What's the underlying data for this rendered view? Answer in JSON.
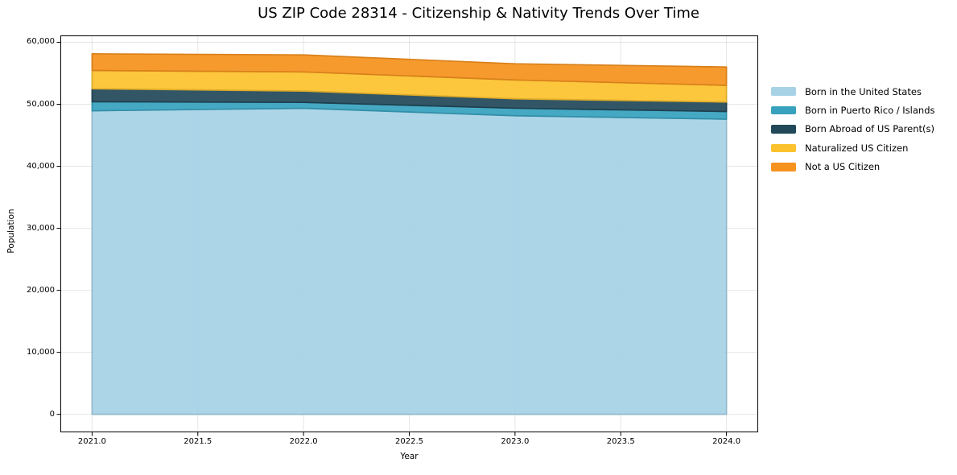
{
  "title": "US ZIP Code 28314 - Citizenship & Nativity Trends Over Time",
  "chart_data": {
    "type": "area",
    "stacked": true,
    "title": "US ZIP Code 28314 - Citizenship & Nativity Trends Over Time",
    "xlabel": "Year",
    "ylabel": "Population",
    "x": [
      2021,
      2022,
      2023,
      2024
    ],
    "series": [
      {
        "name": "Born in the United States",
        "color": "#a7d2e6",
        "values": [
          48950,
          49350,
          48150,
          47600
        ]
      },
      {
        "name": "Born in Puerto Rico / Islands",
        "color": "#38a2be",
        "values": [
          1450,
          960,
          1210,
          1230
        ]
      },
      {
        "name": "Born Abroad of US Parent(s)",
        "color": "#22495a",
        "values": [
          2100,
          1820,
          1520,
          1530
        ]
      },
      {
        "name": "Naturalized US Citizen",
        "color": "#fcc22e",
        "values": [
          2950,
          3090,
          3040,
          2690
        ]
      },
      {
        "name": "Not a US Citizen",
        "color": "#f6921e",
        "values": [
          2680,
          2740,
          2610,
          2960
        ]
      }
    ],
    "totals": [
      58130,
      57960,
      56530,
      56010
    ],
    "xticks": [
      2021.0,
      2021.5,
      2022.0,
      2022.5,
      2023.0,
      2023.5,
      2024.0
    ],
    "xtick_labels": [
      "2021.0",
      "2021.5",
      "2022.0",
      "2022.5",
      "2023.0",
      "2023.5",
      "2024.0"
    ],
    "yticks": [
      0,
      10000,
      20000,
      30000,
      40000,
      50000,
      60000
    ],
    "ytick_labels": [
      "0",
      "10,000",
      "20,000",
      "30,000",
      "40,000",
      "50,000",
      "60,000"
    ],
    "xlim": [
      2020.85,
      2024.15
    ],
    "ylim": [
      -2900,
      61100
    ],
    "grid": true,
    "legend_position": "right-outside",
    "colors": {
      "background": "#ffffff",
      "spine": "#000000",
      "grid": "#b0b0b0",
      "text": "#000000"
    }
  }
}
